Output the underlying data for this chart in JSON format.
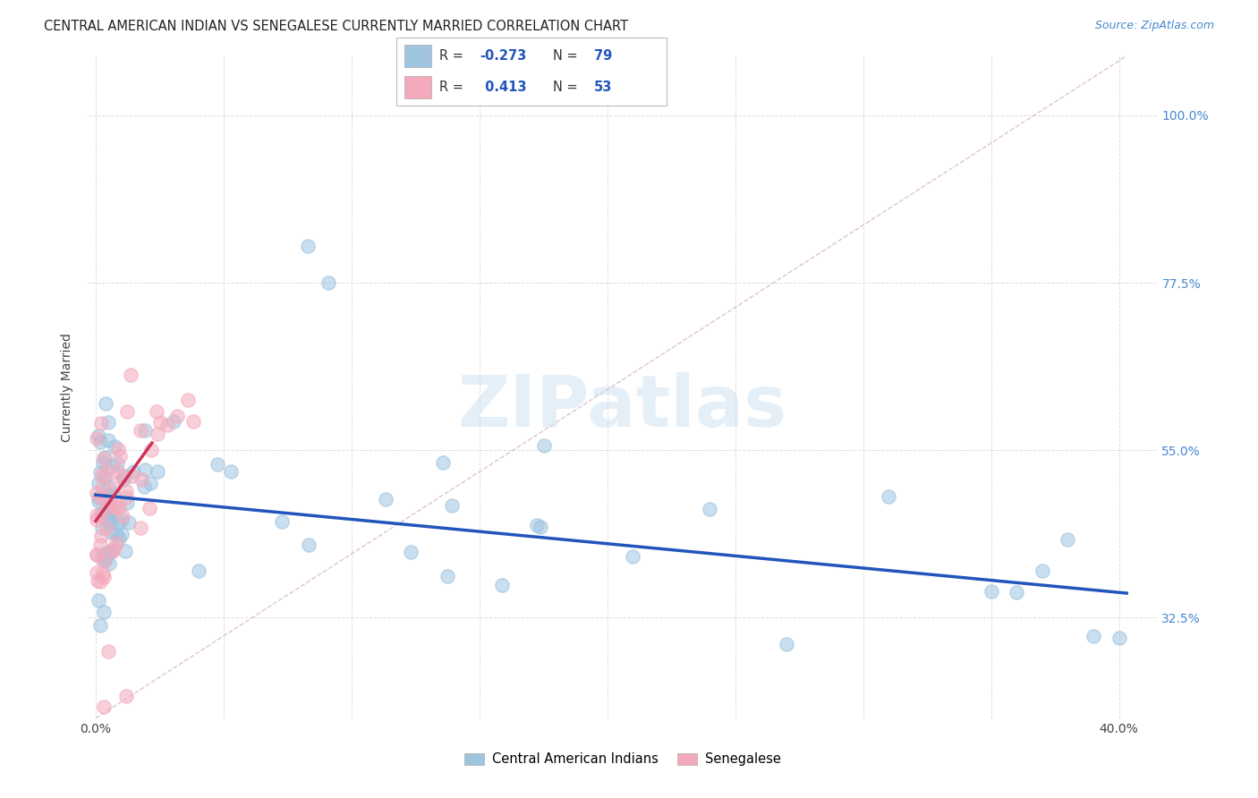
{
  "title": "CENTRAL AMERICAN INDIAN VS SENEGALESE CURRENTLY MARRIED CORRELATION CHART",
  "source": "Source: ZipAtlas.com",
  "ylabel": "Currently Married",
  "ylabel_ticks": [
    0.325,
    0.55,
    0.775,
    1.0
  ],
  "ylabel_labels": [
    "32.5%",
    "55.0%",
    "77.5%",
    "100.0%"
  ],
  "xlim": [
    -0.003,
    0.415
  ],
  "ylim": [
    0.19,
    1.08
  ],
  "blue_color": "#9ec4e0",
  "pink_color": "#f4aabc",
  "blue_trend_color": "#2255bb",
  "pink_trend_color": "#cc3355",
  "diag_color": "#ddbbcc",
  "grid_color": "#dddddd",
  "tick_color_right": "#4488cc",
  "background_color": "#ffffff",
  "scatter_size": 120,
  "scatter_alpha": 0.55,
  "scatter_lw": 1.2,
  "title_fontsize": 10.5,
  "source_fontsize": 9,
  "tick_fontsize": 10,
  "watermark": "ZIPatlas",
  "legend_R_blue": "-0.273",
  "legend_N_blue": "79",
  "legend_R_pink": "0.413",
  "legend_N_pink": "53",
  "legend_label_blue": "Central American Indians",
  "legend_label_pink": "Senegalese",
  "blue_trend_x0": 0.0,
  "blue_trend_x1": 0.403,
  "blue_trend_y0": 0.49,
  "blue_trend_y1": 0.358,
  "pink_trend_x0": 0.0,
  "pink_trend_x1": 0.022,
  "pink_trend_y0": 0.455,
  "pink_trend_y1": 0.56
}
